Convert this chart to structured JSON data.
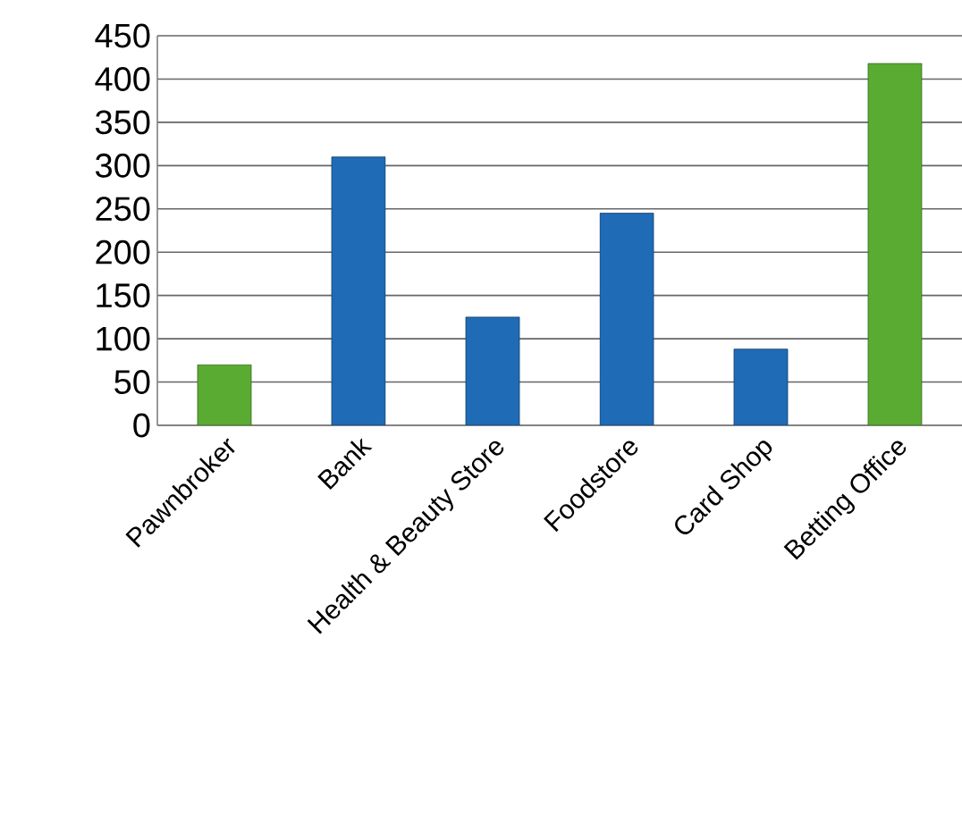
{
  "chart_data": {
    "type": "bar",
    "categories": [
      "Pawnbroker",
      "Bank",
      "Health & Beauty Store",
      "Foodstore",
      "Card Shop",
      "Betting Office"
    ],
    "values": [
      70,
      310,
      125,
      245,
      88,
      418
    ],
    "colors": [
      "#5aab32",
      "#1f6bb5",
      "#1f6bb5",
      "#1f6bb5",
      "#1f6bb5",
      "#5aab32"
    ],
    "ylim": [
      0,
      450
    ],
    "yticks": [
      0,
      50,
      100,
      150,
      200,
      250,
      300,
      350,
      400,
      450
    ],
    "grid": "y"
  }
}
